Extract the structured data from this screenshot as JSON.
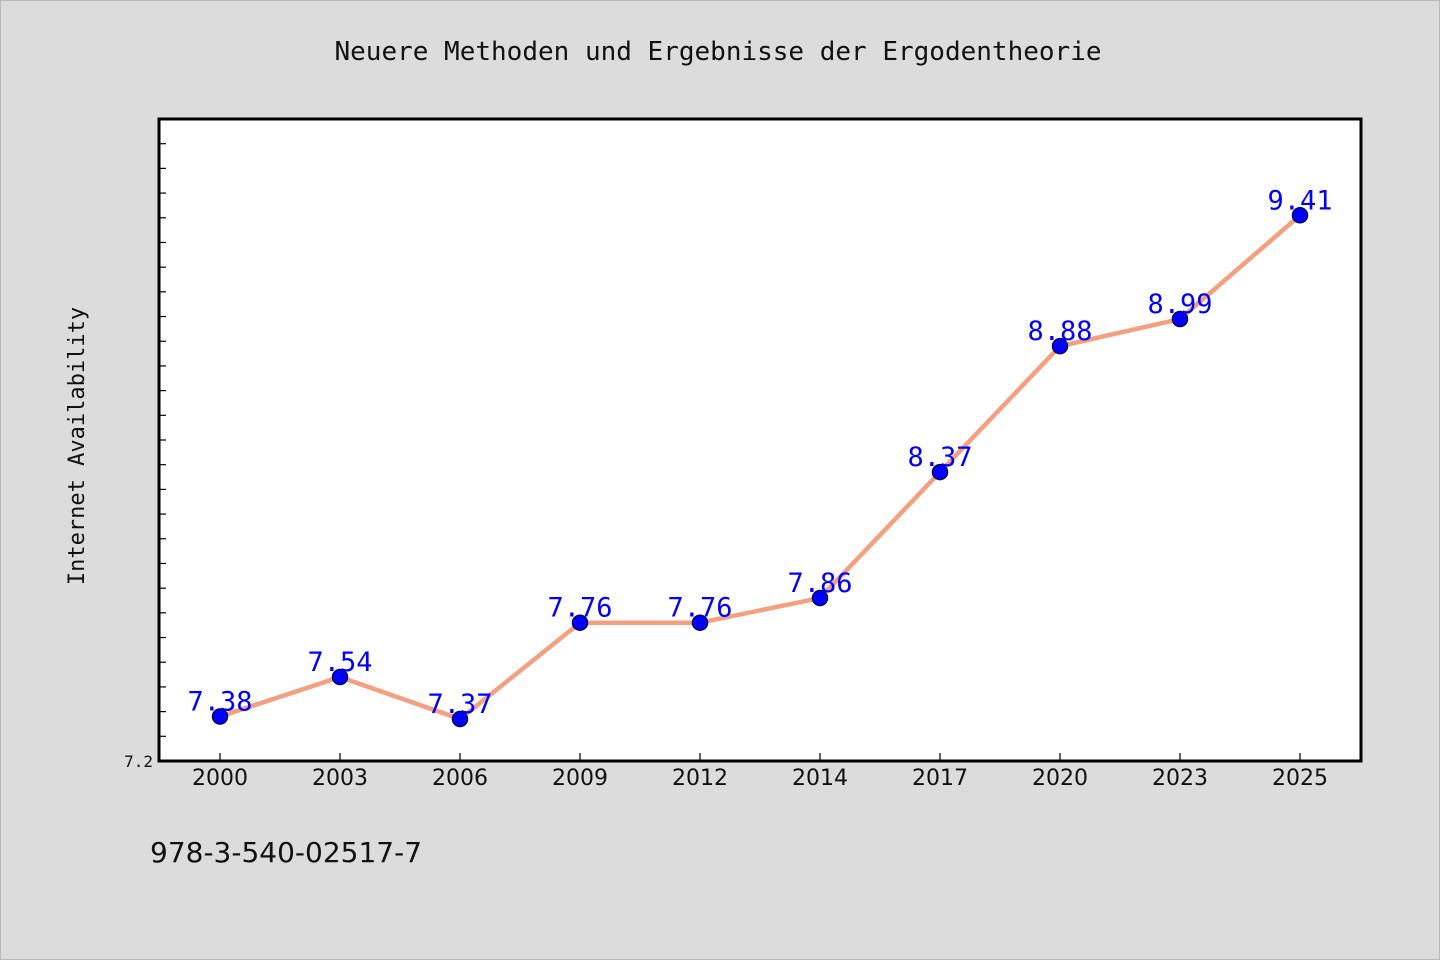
{
  "footer": {
    "isbn": "978-3-540-02517-7"
  },
  "chart_data": {
    "type": "line",
    "title": "Neuere Methoden und Ergebnisse der Ergodentheorie",
    "xlabel": "",
    "ylabel": "Internet Availability",
    "categories": [
      "2000",
      "2003",
      "2006",
      "2009",
      "2012",
      "2014",
      "2017",
      "2020",
      "2023",
      "2025"
    ],
    "series": [
      {
        "values": [
          7.38,
          7.54,
          7.37,
          7.76,
          7.76,
          7.86,
          8.37,
          8.88,
          8.99,
          9.41
        ]
      }
    ],
    "data_labels": [
      "7.38",
      "7.54",
      "7.37",
      "7.76",
      "7.76",
      "7.86",
      "8.37",
      "8.88",
      "8.99",
      "9.41"
    ],
    "ylim": [
      7.2,
      9.8
    ],
    "yticks_labeled": [
      "7.2"
    ],
    "grid": false,
    "legend": "none",
    "colors": {
      "line": "#f4a080",
      "marker": "#0000ff",
      "marker_edge": "#000066",
      "label": "#0000ff",
      "frame": "#000000",
      "plot_bg": "#ffffff",
      "page_bg": "#dcdcdc"
    }
  }
}
